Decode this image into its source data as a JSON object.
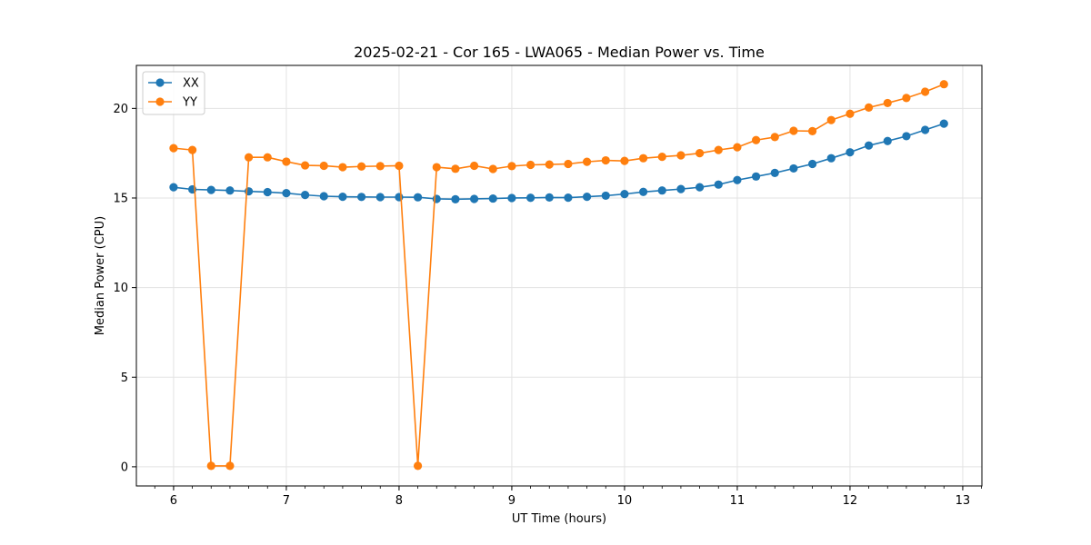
{
  "chart_data": {
    "type": "line",
    "title": "2025-02-21 - Cor 165 - LWA065 - Median Power vs. Time",
    "xlabel": "UT Time (hours)",
    "ylabel": "Median Power (CPU)",
    "xlim": [
      5.67,
      13.17
    ],
    "ylim": [
      -1.07,
      22.4
    ],
    "xticks": [
      6,
      7,
      8,
      9,
      10,
      11,
      12,
      13
    ],
    "yticks": [
      0,
      5,
      10,
      15,
      20
    ],
    "grid": true,
    "legend_position": "top-left",
    "x": [
      6.0,
      6.1667,
      6.3333,
      6.5,
      6.6667,
      6.8333,
      7.0,
      7.1667,
      7.3333,
      7.5,
      7.6667,
      7.8333,
      8.0,
      8.1667,
      8.3333,
      8.5,
      8.6667,
      8.8333,
      9.0,
      9.1667,
      9.3333,
      9.5,
      9.6667,
      9.8333,
      10.0,
      10.1667,
      10.3333,
      10.5,
      10.6667,
      10.8333,
      11.0,
      11.1667,
      11.3333,
      11.5,
      11.6667,
      11.8333,
      12.0,
      12.1667,
      12.3333,
      12.5,
      12.6667,
      12.8333
    ],
    "series": [
      {
        "name": "XX",
        "color": "#1f77b4",
        "values": [
          15.6,
          15.48,
          15.45,
          15.42,
          15.37,
          15.33,
          15.27,
          15.17,
          15.1,
          15.07,
          15.06,
          15.05,
          15.05,
          15.04,
          14.95,
          14.93,
          14.95,
          14.97,
          15.0,
          15.01,
          15.03,
          15.02,
          15.07,
          15.13,
          15.22,
          15.34,
          15.42,
          15.5,
          15.6,
          15.75,
          16.0,
          16.2,
          16.4,
          16.65,
          16.9,
          17.22,
          17.55,
          17.93,
          18.18,
          18.45,
          18.8,
          19.15
        ]
      },
      {
        "name": "YY",
        "color": "#ff7f0e",
        "values": [
          17.78,
          17.68,
          0.05,
          0.05,
          17.27,
          17.27,
          17.03,
          16.82,
          16.8,
          16.72,
          16.76,
          16.78,
          16.8,
          0.05,
          16.72,
          16.63,
          16.8,
          16.62,
          16.78,
          16.85,
          16.87,
          16.9,
          17.02,
          17.1,
          17.07,
          17.22,
          17.3,
          17.38,
          17.5,
          17.68,
          17.83,
          18.23,
          18.4,
          18.75,
          18.73,
          19.35,
          19.7,
          20.05,
          20.3,
          20.58,
          20.93,
          21.35
        ]
      }
    ]
  }
}
